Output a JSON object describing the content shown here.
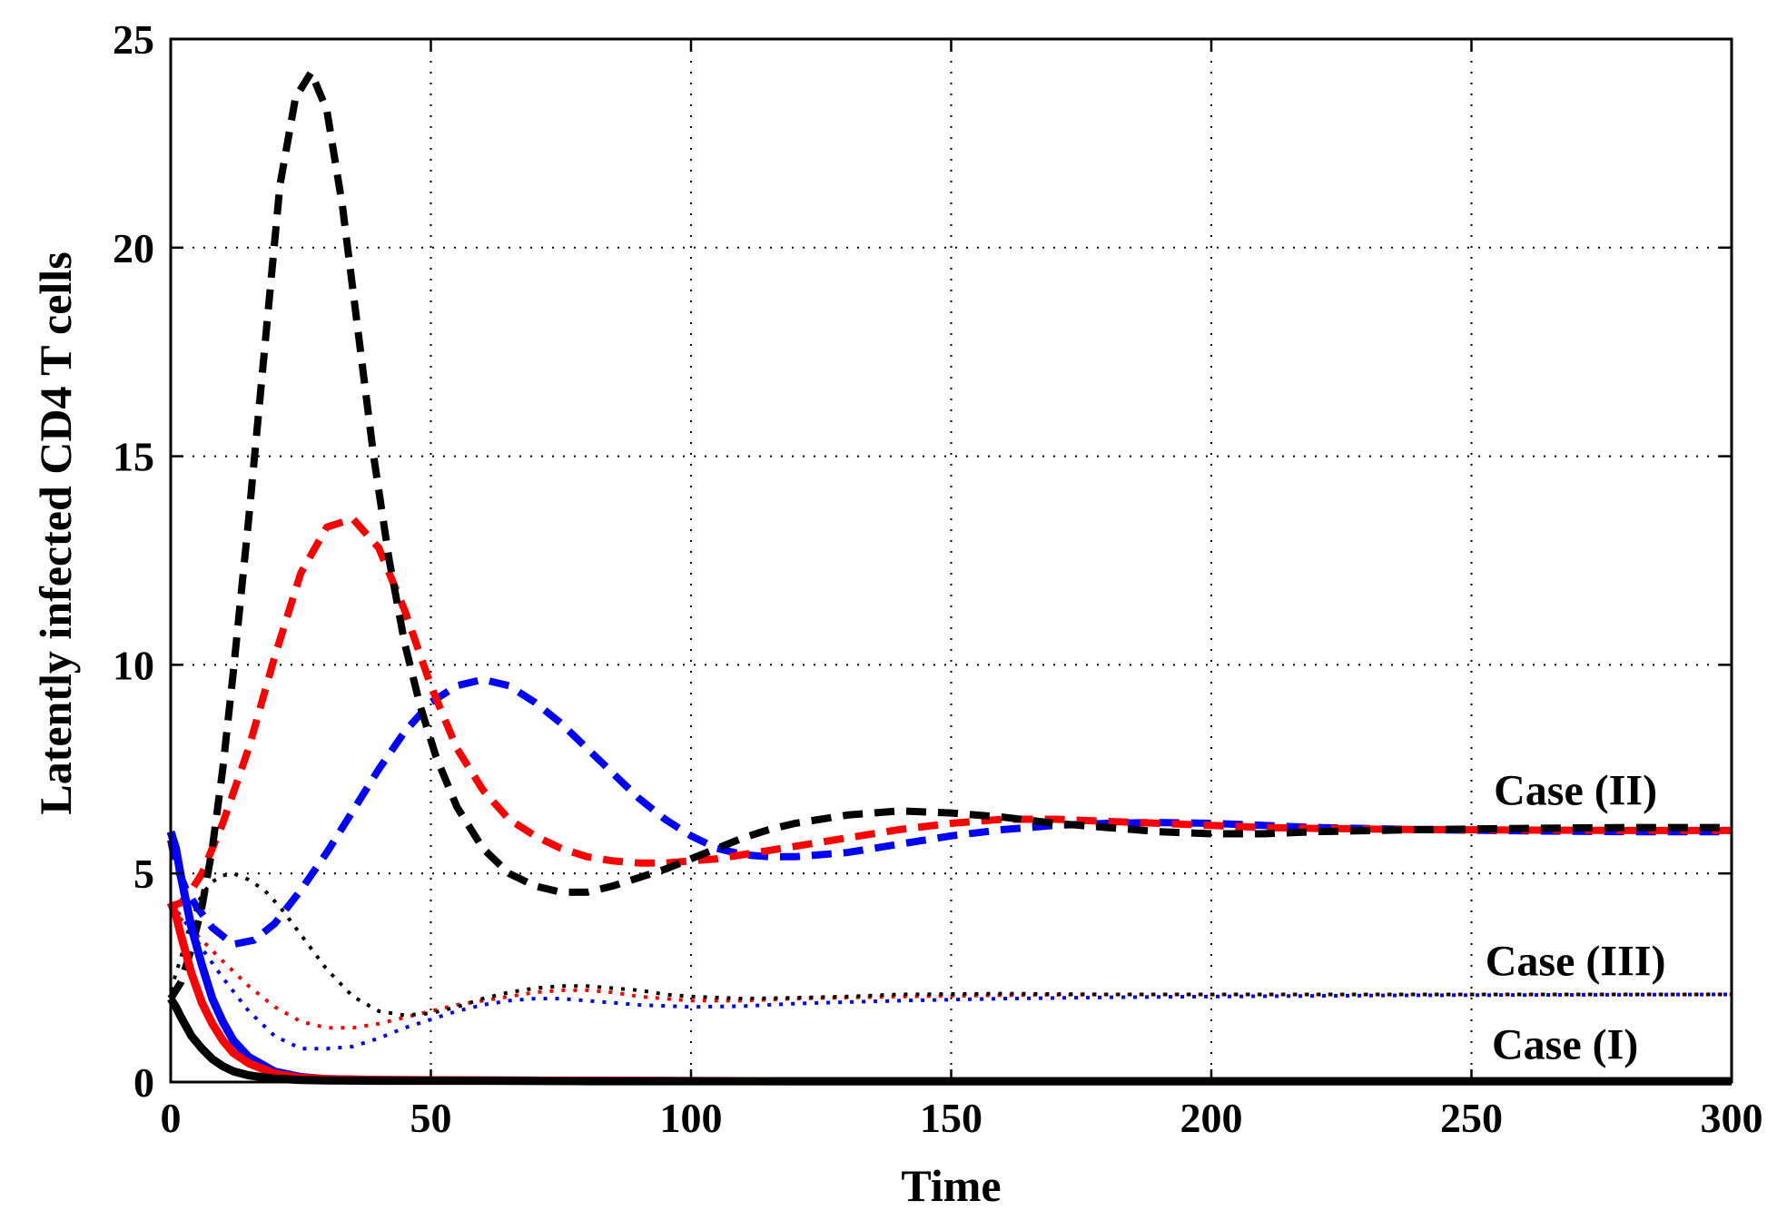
{
  "chart_data": {
    "type": "line",
    "title": "",
    "xlabel": "Time",
    "ylabel": "Latently infected CD4 T cells",
    "xlim": [
      0,
      300
    ],
    "ylim": [
      0,
      25
    ],
    "xticks": [
      "0",
      "50",
      "100",
      "150",
      "200",
      "250",
      "300"
    ],
    "yticks": [
      "0",
      "5",
      "10",
      "15",
      "20",
      "25"
    ],
    "grid": true,
    "colors": {
      "blue": "#0000ff",
      "red": "#ff0000",
      "black": "#000000"
    },
    "annotations": [
      {
        "text": "Case (II)",
        "x": 270,
        "y": 7.0
      },
      {
        "text": "Case (III)",
        "x": 270,
        "y": 2.9
      },
      {
        "text": "Case (I)",
        "x": 268,
        "y": 0.9
      }
    ],
    "series": [
      {
        "case": "Case (I)",
        "color": "blue",
        "style": "solid",
        "x": [
          0,
          1,
          2,
          4,
          6,
          8,
          10,
          12,
          15,
          20,
          25,
          30,
          40,
          60,
          80,
          120,
          300
        ],
        "y": [
          6.0,
          5.6,
          4.9,
          3.7,
          2.8,
          2.0,
          1.45,
          1.0,
          0.6,
          0.25,
          0.12,
          0.07,
          0.05,
          0.04,
          0.03,
          0.02,
          0.02
        ]
      },
      {
        "case": "Case (I)",
        "color": "red",
        "style": "solid",
        "x": [
          0,
          1,
          2,
          4,
          6,
          8,
          10,
          12,
          15,
          20,
          25,
          30,
          40,
          60,
          80,
          120,
          300
        ],
        "y": [
          4.3,
          4.0,
          3.5,
          2.6,
          1.9,
          1.4,
          1.0,
          0.7,
          0.45,
          0.2,
          0.1,
          0.07,
          0.05,
          0.04,
          0.03,
          0.02,
          0.02
        ]
      },
      {
        "case": "Case (I)",
        "color": "black",
        "style": "solid",
        "x": [
          0,
          1,
          2,
          4,
          6,
          8,
          10,
          12,
          15,
          20,
          25,
          30,
          40,
          60,
          80,
          120,
          300
        ],
        "y": [
          2.0,
          1.8,
          1.55,
          1.1,
          0.8,
          0.55,
          0.38,
          0.26,
          0.16,
          0.08,
          0.05,
          0.04,
          0.03,
          0.03,
          0.02,
          0.02,
          0.02
        ]
      },
      {
        "case": "Case (II)",
        "color": "blue",
        "style": "dashed",
        "x": [
          0,
          1,
          3,
          5,
          8,
          12,
          16,
          20,
          25,
          30,
          35,
          40,
          45,
          50,
          55,
          60,
          65,
          70,
          75,
          80,
          85,
          90,
          95,
          100,
          105,
          110,
          115,
          120,
          125,
          130,
          135,
          140,
          145,
          150,
          160,
          170,
          180,
          190,
          200,
          210,
          220,
          240,
          260,
          280,
          300
        ],
        "y": [
          5.8,
          5.2,
          4.6,
          4.2,
          3.7,
          3.3,
          3.4,
          3.8,
          4.6,
          5.5,
          6.5,
          7.5,
          8.4,
          9.1,
          9.5,
          9.65,
          9.5,
          9.1,
          8.6,
          8.0,
          7.4,
          6.8,
          6.3,
          5.9,
          5.6,
          5.45,
          5.4,
          5.4,
          5.45,
          5.5,
          5.6,
          5.7,
          5.8,
          5.9,
          6.05,
          6.15,
          6.2,
          6.22,
          6.2,
          6.15,
          6.1,
          6.05,
          6.02,
          6.0,
          6.0
        ]
      },
      {
        "case": "Case (II)",
        "color": "red",
        "style": "dashed",
        "x": [
          0,
          2,
          4,
          6,
          10,
          15,
          20,
          25,
          30,
          35,
          40,
          45,
          50,
          55,
          60,
          65,
          70,
          75,
          80,
          85,
          90,
          95,
          100,
          105,
          110,
          115,
          120,
          125,
          130,
          140,
          150,
          160,
          170,
          180,
          190,
          200,
          210,
          220,
          240,
          260,
          280,
          300
        ],
        "y": [
          4.2,
          4.3,
          4.6,
          5.0,
          6.2,
          8.0,
          10.2,
          12.2,
          13.3,
          13.5,
          12.8,
          11.3,
          9.5,
          8.0,
          7.0,
          6.3,
          5.9,
          5.6,
          5.4,
          5.3,
          5.25,
          5.25,
          5.3,
          5.35,
          5.45,
          5.55,
          5.65,
          5.75,
          5.85,
          6.05,
          6.2,
          6.3,
          6.3,
          6.25,
          6.2,
          6.15,
          6.1,
          6.08,
          6.05,
          6.04,
          6.03,
          6.03
        ]
      },
      {
        "case": "Case (II)",
        "color": "black",
        "style": "dashed",
        "x": [
          0,
          2,
          4,
          6,
          8,
          10,
          12,
          15,
          18,
          21,
          24,
          27,
          30,
          33,
          36,
          39,
          42,
          45,
          48,
          51,
          55,
          60,
          65,
          70,
          75,
          80,
          85,
          90,
          95,
          100,
          105,
          110,
          115,
          120,
          130,
          140,
          150,
          160,
          170,
          180,
          190,
          200,
          210,
          220,
          240,
          260,
          280,
          300
        ],
        "y": [
          2.0,
          2.4,
          3.2,
          4.2,
          5.6,
          7.5,
          9.8,
          13.5,
          17.5,
          21.5,
          23.6,
          24.2,
          23.3,
          21.0,
          18.0,
          15.0,
          12.5,
          10.5,
          9.0,
          7.8,
          6.6,
          5.6,
          5.0,
          4.7,
          4.55,
          4.55,
          4.7,
          4.9,
          5.1,
          5.35,
          5.6,
          5.85,
          6.05,
          6.2,
          6.4,
          6.5,
          6.45,
          6.35,
          6.2,
          6.1,
          6.0,
          5.95,
          5.95,
          6.0,
          6.05,
          6.08,
          6.1,
          6.1
        ]
      },
      {
        "case": "Case (III)",
        "color": "blue",
        "style": "dotted",
        "x": [
          0,
          3,
          6,
          10,
          15,
          20,
          25,
          30,
          35,
          40,
          45,
          50,
          55,
          60,
          65,
          70,
          75,
          80,
          90,
          100,
          110,
          120,
          140,
          160,
          180,
          200,
          240,
          300
        ],
        "y": [
          4.3,
          3.8,
          3.2,
          2.5,
          1.7,
          1.1,
          0.8,
          0.8,
          0.85,
          1.05,
          1.3,
          1.5,
          1.7,
          1.85,
          1.95,
          2.0,
          2.0,
          1.95,
          1.85,
          1.8,
          1.82,
          1.88,
          1.95,
          2.0,
          2.03,
          2.05,
          2.08,
          2.1
        ]
      },
      {
        "case": "Case (III)",
        "color": "red",
        "style": "dotted",
        "x": [
          0,
          3,
          6,
          10,
          15,
          20,
          25,
          30,
          35,
          40,
          45,
          50,
          55,
          60,
          65,
          70,
          75,
          80,
          85,
          90,
          100,
          110,
          120,
          140,
          160,
          180,
          200,
          240,
          300
        ],
        "y": [
          4.1,
          3.8,
          3.4,
          2.9,
          2.3,
          1.8,
          1.45,
          1.3,
          1.3,
          1.4,
          1.55,
          1.7,
          1.85,
          1.95,
          2.05,
          2.15,
          2.2,
          2.2,
          2.15,
          2.05,
          1.95,
          1.95,
          2.0,
          2.05,
          2.08,
          2.1,
          2.1,
          2.1,
          2.1
        ]
      },
      {
        "case": "Case (III)",
        "color": "black",
        "style": "dotted",
        "x": [
          0,
          2,
          4,
          6,
          8,
          10,
          12,
          15,
          18,
          21,
          24,
          27,
          30,
          35,
          40,
          45,
          50,
          55,
          60,
          65,
          70,
          75,
          80,
          85,
          90,
          95,
          100,
          110,
          120,
          130,
          140,
          160,
          180,
          200,
          240,
          300
        ],
        "y": [
          2.2,
          3.0,
          3.9,
          4.5,
          4.8,
          4.95,
          5.0,
          4.85,
          4.6,
          4.2,
          3.7,
          3.2,
          2.7,
          2.05,
          1.7,
          1.6,
          1.65,
          1.8,
          2.0,
          2.15,
          2.25,
          2.3,
          2.3,
          2.25,
          2.2,
          2.1,
          2.05,
          2.0,
          2.02,
          2.05,
          2.1,
          2.12,
          2.1,
          2.1,
          2.1,
          2.1
        ]
      }
    ]
  }
}
